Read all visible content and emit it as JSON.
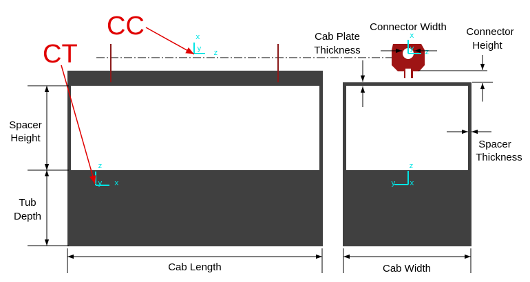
{
  "markers": {
    "cc": "CC",
    "ct": "CT"
  },
  "dimensions": {
    "spacer_height": [
      "Spacer",
      "Height"
    ],
    "tub_depth": [
      "Tub",
      "Depth"
    ],
    "cab_length": "Cab Length",
    "cab_width": "Cab Width",
    "cab_plate_thickness": [
      "Cab Plate",
      "Thickness"
    ],
    "connector_width": "Connector Width",
    "connector_height": [
      "Connector",
      "Height"
    ],
    "spacer_thickness": [
      "Spacer",
      "Thickness"
    ]
  },
  "axes": {
    "x": "x",
    "y": "y",
    "z": "z"
  },
  "colors": {
    "body": "#404040",
    "connector": "#9e1414",
    "axis": "#00e5e5",
    "marker": "#e00000"
  }
}
